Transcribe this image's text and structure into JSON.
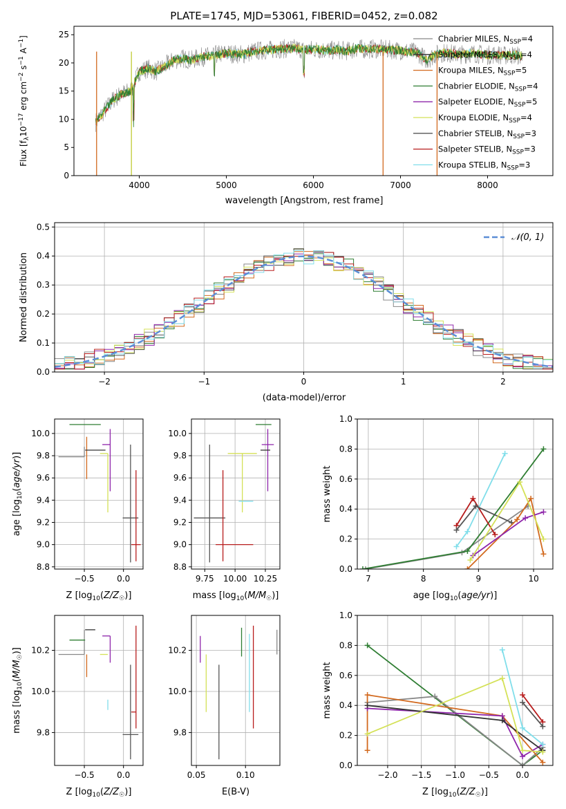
{
  "title": "PLATE=1745, MJD=53061, FIBERID=0452, z=0.082",
  "colors": {
    "Chabrier MILES": "#888888",
    "Salpeter MILES": "#333333",
    "Kroupa MILES": "#d2691e",
    "Chabrier ELODIE": "#2e7d32",
    "Salpeter ELODIE": "#8e24aa",
    "Kroupa ELODIE": "#d4e157",
    "Chabrier STELIB": "#555555",
    "Salpeter STELIB": "#b71c1c",
    "Kroupa STELIB": "#80deea"
  },
  "chart_data": [
    {
      "id": "spectrum",
      "type": "line",
      "xlabel": "wavelength [Angstrom, rest frame]",
      "ylabel": "Flux [f_λ 10^-17 erg cm^-2 s^-1 A^-1]",
      "xlim": [
        3250,
        8750
      ],
      "ylim": [
        0,
        26.5
      ],
      "xticks": [
        4000,
        5000,
        6000,
        7000,
        8000
      ],
      "yticks": [
        0,
        5,
        10,
        15,
        20,
        25
      ],
      "legend_position": "upper-right",
      "legend": [
        {
          "label": "Chabrier MILES, N_SSP=4",
          "key": "Chabrier MILES"
        },
        {
          "label": "Salpeter MILES, N_SSP=4",
          "key": "Salpeter MILES"
        },
        {
          "label": "Kroupa MILES, N_SSP=5",
          "key": "Kroupa MILES"
        },
        {
          "label": "Chabrier ELODIE, N_SSP=4",
          "key": "Chabrier ELODIE"
        },
        {
          "label": "Salpeter ELODIE, N_SSP=5",
          "key": "Salpeter ELODIE"
        },
        {
          "label": "Kroupa ELODIE, N_SSP=4",
          "key": "Kroupa ELODIE"
        },
        {
          "label": "Chabrier STELIB, N_SSP=3",
          "key": "Chabrier STELIB"
        },
        {
          "label": "Salpeter STELIB, N_SSP=3",
          "key": "Salpeter STELIB"
        },
        {
          "label": "Kroupa STELIB, N_SSP=3",
          "key": "Kroupa STELIB"
        }
      ],
      "data_series": {
        "x": [
          3500,
          3600,
          3700,
          3800,
          3900,
          4000,
          4100,
          4200,
          4300,
          4400,
          4500,
          4600,
          4700,
          4800,
          4900,
          5000,
          5100,
          5200,
          5300,
          5400,
          5500,
          5600,
          5700,
          5800,
          5900,
          6000,
          6100,
          6200,
          6300,
          6400,
          6500,
          6600,
          6700,
          6800,
          6900,
          7000,
          7100,
          7200,
          7300,
          7400,
          7500,
          7600,
          7700,
          7800,
          7900,
          8000,
          8100,
          8200,
          8300,
          8400
        ],
        "y": [
          9.5,
          11.5,
          13.5,
          14.5,
          15.0,
          18.5,
          19.0,
          18.5,
          19.5,
          20.5,
          20.8,
          20.5,
          21.0,
          21.2,
          21.5,
          21.7,
          21.6,
          21.5,
          22.0,
          22.2,
          22.3,
          22.5,
          22.5,
          22.6,
          22.3,
          22.4,
          22.3,
          22.2,
          22.3,
          22.1,
          22.6,
          22.4,
          22.5,
          22.4,
          22.3,
          22.2,
          22.0,
          21.8,
          20.5,
          21.5,
          21.8,
          21.6,
          21.5,
          21.7,
          21.6,
          21.4,
          21.5,
          21.3,
          21.4,
          21.2
        ]
      }
    },
    {
      "id": "residuals",
      "type": "histogram",
      "xlabel": "(data-model)/error",
      "ylabel": "Normed distribution",
      "xlim": [
        -2.5,
        2.5
      ],
      "ylim": [
        0,
        0.515
      ],
      "xticks": [
        -2,
        -1,
        0,
        1,
        2
      ],
      "yticks": [
        0.0,
        0.1,
        0.2,
        0.3,
        0.4,
        0.5
      ],
      "grid": true,
      "legend_position": "upper-right",
      "legend": [
        {
          "label": "𝒩(0, 1)"
        }
      ],
      "bin_width": 0.1,
      "gaussian": {
        "mean": 0,
        "sigma": 1
      }
    },
    {
      "id": "age-vs-z",
      "type": "errorbar",
      "xlabel": "Z [log10(Z/Z☉)]",
      "ylabel": "age  [log10(age/yr)]",
      "xlim": [
        -0.88,
        0.25
      ],
      "ylim": [
        8.78,
        10.13
      ],
      "xticks": [
        -0.5,
        0.0
      ],
      "yticks": [
        8.8,
        9.0,
        9.2,
        9.4,
        9.6,
        9.8,
        10.0
      ],
      "grid": true,
      "points": [
        {
          "key": "Chabrier MILES",
          "x": -0.5,
          "y": 9.79,
          "xerr": [
            0.33,
            0.0
          ],
          "yerr": [
            0.0,
            0.09
          ]
        },
        {
          "key": "Chabrier ELODIE",
          "x": -0.49,
          "y": 10.08,
          "xerr": [
            0.2,
            0.2
          ],
          "yerr": [
            0.0,
            0.0
          ]
        },
        {
          "key": "Kroupa MILES",
          "x": -0.47,
          "y": 9.79,
          "xerr": [
            0.0,
            0.0
          ],
          "yerr": [
            0.2,
            0.18
          ]
        },
        {
          "key": "Salpeter MILES",
          "x": -0.36,
          "y": 9.85,
          "xerr": [
            0.13,
            0.13
          ],
          "yerr": [
            0.0,
            0.0
          ]
        },
        {
          "key": "Salpeter ELODIE",
          "x": -0.17,
          "y": 9.9,
          "xerr": [
            0.1,
            0.0
          ],
          "yerr": [
            0.42,
            0.14
          ]
        },
        {
          "key": "Kroupa ELODIE",
          "x": -0.2,
          "y": 9.82,
          "xerr": [
            0.1,
            0.0
          ],
          "yerr": [
            0.53,
            0.0
          ]
        },
        {
          "key": "Kroupa STELIB",
          "x": -0.2,
          "y": 9.39,
          "xerr": [
            0.0,
            0.0
          ],
          "yerr": [
            0.0,
            0.0
          ]
        },
        {
          "key": "Chabrier STELIB",
          "x": 0.09,
          "y": 9.24,
          "xerr": [
            0.1,
            0.1
          ],
          "yerr": [
            0.4,
            0.66
          ]
        },
        {
          "key": "Salpeter STELIB",
          "x": 0.16,
          "y": 9.0,
          "xerr": [
            0.06,
            0.06
          ],
          "yerr": [
            0.15,
            0.67
          ]
        }
      ]
    },
    {
      "id": "age-vs-mass",
      "type": "errorbar",
      "xlabel": "mass [log10(M/M☉)]",
      "ylabel": "",
      "xlim": [
        9.64,
        10.37
      ],
      "ylim": [
        8.78,
        10.13
      ],
      "xticks": [
        9.75,
        10.0,
        10.25
      ],
      "yticks": [
        8.8,
        9.0,
        9.2,
        9.4,
        9.6,
        9.8,
        10.0
      ],
      "grid": true,
      "points": [
        {
          "key": "Chabrier ELODIE",
          "x": 10.25,
          "y": 10.08,
          "xerr": [
            0.08,
            0.05
          ],
          "yerr": [
            0.0,
            0.0
          ]
        },
        {
          "key": "Salpeter ELODIE",
          "x": 10.27,
          "y": 9.9,
          "xerr": [
            0.05,
            0.05
          ],
          "yerr": [
            0.42,
            0.14
          ]
        },
        {
          "key": "Salpeter MILES",
          "x": 10.25,
          "y": 9.85,
          "xerr": [
            0.04,
            0.04
          ],
          "yerr": [
            0.0,
            0.0
          ]
        },
        {
          "key": "Kroupa ELODIE",
          "x": 10.06,
          "y": 9.82,
          "xerr": [
            0.12,
            0.12
          ],
          "yerr": [
            0.53,
            0.0
          ]
        },
        {
          "key": "Kroupa STELIB",
          "x": 10.03,
          "y": 9.39,
          "xerr": [
            0.0,
            0.12
          ],
          "yerr": [
            0.0,
            0.0
          ]
        },
        {
          "key": "Chabrier STELIB",
          "x": 9.79,
          "y": 9.24,
          "xerr": [
            0.13,
            0.13
          ],
          "yerr": [
            0.4,
            0.66
          ]
        },
        {
          "key": "Salpeter STELIB",
          "x": 9.9,
          "y": 9.0,
          "xerr": [
            0.06,
            0.25
          ],
          "yerr": [
            0.15,
            0.67
          ]
        }
      ]
    },
    {
      "id": "weight-vs-age",
      "type": "line",
      "xlabel": "age  [log10(age/yr)]",
      "ylabel": "mass weight",
      "xlim": [
        6.8,
        10.35
      ],
      "ylim": [
        0,
        1.0
      ],
      "xticks": [
        7,
        8,
        9,
        10
      ],
      "yticks": [
        0.0,
        0.2,
        0.4,
        0.6,
        0.8,
        1.0
      ],
      "grid": true,
      "series": [
        {
          "key": "Chabrier MILES",
          "x": [
            6.95,
            8.7,
            9.9
          ],
          "y": [
            0.0,
            0.11,
            0.42
          ]
        },
        {
          "key": "Chabrier ELODIE",
          "x": [
            6.9,
            8.8,
            10.18
          ],
          "y": [
            0.0,
            0.12,
            0.8
          ]
        },
        {
          "key": "Kroupa STELIB",
          "x": [
            8.6,
            8.8,
            9.48
          ],
          "y": [
            0.15,
            0.25,
            0.77
          ]
        },
        {
          "key": "Salpeter STELIB",
          "x": [
            8.6,
            8.9,
            9.3
          ],
          "y": [
            0.29,
            0.47,
            0.23
          ]
        },
        {
          "key": "Chabrier STELIB",
          "x": [
            8.6,
            8.95,
            9.6
          ],
          "y": [
            0.26,
            0.42,
            0.31
          ]
        },
        {
          "key": "Kroupa MILES",
          "x": [
            8.8,
            9.7,
            9.95,
            10.18
          ],
          "y": [
            0.0,
            0.33,
            0.47,
            0.1
          ]
        },
        {
          "key": "Salpeter ELODIE",
          "x": [
            8.9,
            9.85,
            10.18
          ],
          "y": [
            0.09,
            0.34,
            0.38
          ]
        },
        {
          "key": "Kroupa ELODIE",
          "x": [
            8.85,
            9.75,
            10.18
          ],
          "y": [
            0.06,
            0.58,
            0.2
          ]
        }
      ]
    },
    {
      "id": "mass-vs-z",
      "type": "errorbar",
      "xlabel": "Z [log10(Z/Z☉)]",
      "ylabel": "mass [log10(M/M☉)]",
      "xlim": [
        -0.88,
        0.25
      ],
      "ylim": [
        9.64,
        10.37
      ],
      "xticks": [
        -0.5,
        0.0
      ],
      "yticks": [
        9.8,
        10.0,
        10.2
      ],
      "grid": true,
      "points": [
        {
          "key": "Chabrier MILES",
          "x": -0.5,
          "y": 10.18,
          "xerr": [
            0.33,
            0.0
          ],
          "yerr": [
            0.0,
            0.12
          ]
        },
        {
          "key": "Chabrier ELODIE",
          "x": -0.49,
          "y": 10.25,
          "xerr": [
            0.2,
            0.0
          ],
          "yerr": [
            0.0,
            0.0
          ]
        },
        {
          "key": "Salpeter MILES",
          "x": -0.36,
          "y": 10.3,
          "xerr": [
            0.13,
            0.0
          ],
          "yerr": [
            0.0,
            0.0
          ]
        },
        {
          "key": "Salpeter ELODIE",
          "x": -0.17,
          "y": 10.27,
          "xerr": [
            0.1,
            0.0
          ],
          "yerr": [
            0.13,
            0.0
          ]
        },
        {
          "key": "Kroupa ELODIE",
          "x": -0.2,
          "y": 10.18,
          "xerr": [
            0.1,
            0.0
          ],
          "yerr": [
            0.0,
            0.0
          ]
        },
        {
          "key": "Kroupa STELIB",
          "x": -0.2,
          "y": 9.96,
          "xerr": [
            0.0,
            0.0
          ],
          "yerr": [
            0.05,
            0.0
          ]
        },
        {
          "key": "Kroupa MILES",
          "x": -0.47,
          "y": 10.18,
          "xerr": [
            0.0,
            0.0
          ],
          "yerr": [
            0.11,
            0.0
          ]
        },
        {
          "key": "Chabrier STELIB",
          "x": 0.09,
          "y": 9.79,
          "xerr": [
            0.1,
            0.1
          ],
          "yerr": [
            0.12,
            0.34
          ]
        },
        {
          "key": "Salpeter STELIB",
          "x": 0.16,
          "y": 9.9,
          "xerr": [
            0.06,
            0.0
          ],
          "yerr": [
            0.08,
            0.42
          ]
        }
      ]
    },
    {
      "id": "mass-vs-ebv",
      "type": "errorbar",
      "xlabel": "E(B-V)",
      "ylabel": "",
      "xlim": [
        0.045,
        0.135
      ],
      "ylim": [
        9.64,
        10.37
      ],
      "xticks": [
        0.05,
        0.1
      ],
      "yticks": [
        9.8,
        10.0,
        10.2
      ],
      "grid": true,
      "points": [
        {
          "key": "Salpeter ELODIE",
          "x": 0.054,
          "y": 10.27,
          "xerr": [
            0,
            0
          ],
          "yerr": [
            0.13,
            0.0
          ]
        },
        {
          "key": "Kroupa ELODIE",
          "x": 0.06,
          "y": 10.18,
          "xerr": [
            0,
            0
          ],
          "yerr": [
            0.28,
            0.0
          ]
        },
        {
          "key": "Chabrier STELIB",
          "x": 0.073,
          "y": 9.79,
          "xerr": [
            0,
            0
          ],
          "yerr": [
            0.12,
            0.34
          ]
        },
        {
          "key": "Chabrier ELODIE",
          "x": 0.096,
          "y": 10.25,
          "xerr": [
            0,
            0
          ],
          "yerr": [
            0.08,
            0.06
          ]
        },
        {
          "key": "Kroupa STELIB",
          "x": 0.104,
          "y": 9.96,
          "xerr": [
            0,
            0
          ],
          "yerr": [
            0.06,
            0.32
          ]
        },
        {
          "key": "Salpeter STELIB",
          "x": 0.108,
          "y": 9.9,
          "xerr": [
            0,
            0
          ],
          "yerr": [
            0.08,
            0.42
          ]
        },
        {
          "key": "Chabrier MILES",
          "x": 0.132,
          "y": 10.18,
          "xerr": [
            0,
            0
          ],
          "yerr": [
            0.0,
            0.12
          ]
        }
      ]
    },
    {
      "id": "weight-vs-z",
      "type": "line",
      "xlabel": "Z [log10(Z/Z☉)]",
      "ylabel": "mass weight",
      "xlim": [
        -2.45,
        0.45
      ],
      "ylim": [
        0,
        1.0
      ],
      "xticks": [
        -2.0,
        -1.5,
        -1.0,
        -0.5,
        0.0
      ],
      "yticks": [
        0.0,
        0.2,
        0.4,
        0.6,
        0.8,
        1.0
      ],
      "grid": true,
      "series": [
        {
          "key": "Chabrier ELODIE",
          "x": [
            -2.3,
            0.0,
            0.3
          ],
          "y": [
            0.8,
            0.0,
            0.1
          ]
        },
        {
          "key": "Chabrier MILES",
          "x": [
            -2.3,
            -1.3,
            0.0,
            0.3
          ],
          "y": [
            0.42,
            0.46,
            0.0,
            0.12
          ]
        },
        {
          "key": "Kroupa MILES",
          "x": [
            -2.3,
            -2.3,
            -0.3,
            0.3
          ],
          "y": [
            0.1,
            0.47,
            0.33,
            0.02
          ]
        },
        {
          "key": "Salpeter ELODIE",
          "x": [
            -2.3,
            -0.3,
            0.0,
            0.3
          ],
          "y": [
            0.38,
            0.33,
            0.06,
            0.14
          ]
        },
        {
          "key": "Salpeter MILES",
          "x": [
            -2.3,
            -0.3,
            0.3
          ],
          "y": [
            0.4,
            0.3,
            0.1
          ]
        },
        {
          "key": "Kroupa ELODIE",
          "x": [
            -2.3,
            -0.3,
            0.0,
            0.3
          ],
          "y": [
            0.21,
            0.58,
            0.1,
            0.09
          ]
        },
        {
          "key": "Kroupa STELIB",
          "x": [
            -0.3,
            0.0,
            0.3
          ],
          "y": [
            0.77,
            0.25,
            0.14
          ]
        },
        {
          "key": "Salpeter STELIB",
          "x": [
            0.0,
            0.3
          ],
          "y": [
            0.47,
            0.29
          ]
        },
        {
          "key": "Chabrier STELIB",
          "x": [
            0.0,
            0.3
          ],
          "y": [
            0.42,
            0.26
          ]
        }
      ]
    }
  ]
}
